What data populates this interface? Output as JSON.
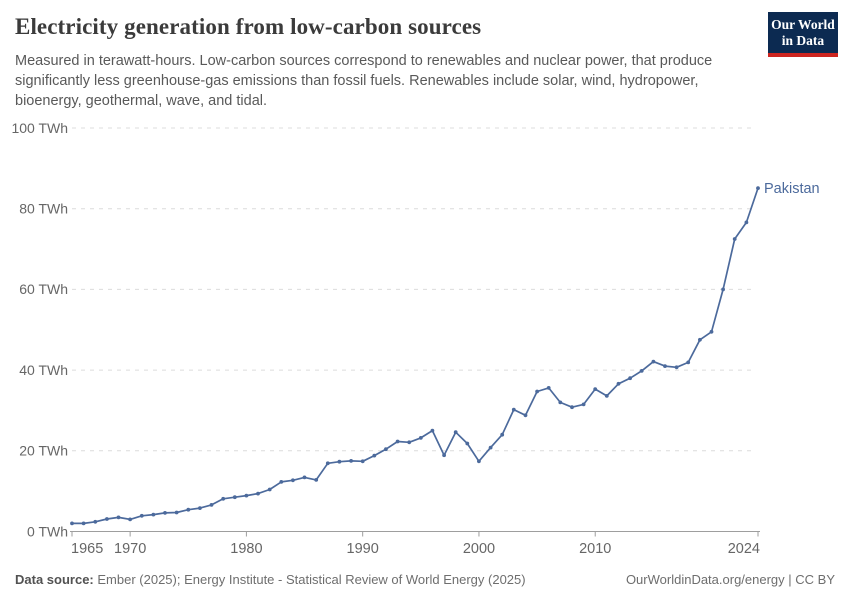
{
  "header": {
    "title": "Electricity generation from low-carbon sources",
    "subtitle": "Measured in terawatt-hours. Low-carbon sources correspond to renewables and nuclear power, that produce significantly less greenhouse-gas emissions than fossil fuels. Renewables include solar, wind, hydropower, bioenergy, geothermal, wave, and tidal.",
    "logo": {
      "line1": "Our World",
      "line2": "in Data",
      "bg_color": "#0c2a51",
      "accent_color": "#cd2520"
    }
  },
  "chart_data": {
    "type": "line",
    "title": "Electricity generation from low-carbon sources",
    "unit": "TWh",
    "xlabel": "",
    "ylabel": "",
    "grid": true,
    "legend_position": "end-of-line-label",
    "xlim": [
      1965,
      2024
    ],
    "ylim": [
      0,
      100
    ],
    "x_ticks": [
      1965,
      1970,
      1980,
      1990,
      2000,
      2010,
      2024
    ],
    "y_ticks": [
      {
        "value": 0,
        "label": "0 TWh"
      },
      {
        "value": 20,
        "label": "20 TWh"
      },
      {
        "value": 40,
        "label": "40 TWh"
      },
      {
        "value": 60,
        "label": "60 TWh"
      },
      {
        "value": 80,
        "label": "80 TWh"
      },
      {
        "value": 100,
        "label": "100 TWh"
      }
    ],
    "series": [
      {
        "name": "Pakistan",
        "color": "#4c6a9c",
        "x": [
          1965,
          1966,
          1967,
          1968,
          1969,
          1970,
          1971,
          1972,
          1973,
          1974,
          1975,
          1976,
          1977,
          1978,
          1979,
          1980,
          1981,
          1982,
          1983,
          1984,
          1985,
          1986,
          1987,
          1988,
          1989,
          1990,
          1991,
          1992,
          1993,
          1994,
          1995,
          1996,
          1997,
          1998,
          1999,
          2000,
          2001,
          2002,
          2003,
          2004,
          2005,
          2006,
          2007,
          2008,
          2009,
          2010,
          2011,
          2012,
          2013,
          2014,
          2015,
          2016,
          2017,
          2018,
          2019,
          2020,
          2021,
          2022,
          2023,
          2024
        ],
        "values": [
          2.0,
          2.0,
          2.4,
          3.1,
          3.5,
          3.0,
          3.9,
          4.2,
          4.6,
          4.7,
          5.4,
          5.8,
          6.6,
          8.1,
          8.5,
          8.9,
          9.4,
          10.4,
          12.3,
          12.7,
          13.4,
          12.8,
          16.9,
          17.3,
          17.5,
          17.4,
          18.8,
          20.4,
          22.3,
          22.1,
          23.2,
          25.0,
          18.9,
          24.6,
          21.8,
          17.4,
          20.8,
          24.0,
          30.2,
          28.8,
          34.7,
          35.6,
          32.0,
          30.8,
          31.5,
          35.3,
          33.6,
          36.6,
          38.0,
          39.8,
          42.1,
          41.0,
          40.7,
          41.9,
          47.5,
          49.5,
          60.0,
          72.5,
          76.6,
          85.1
        ]
      }
    ]
  },
  "footer": {
    "data_source_label": "Data source:",
    "data_source_text": "Ember (2025); Energy Institute - Statistical Review of World Energy (2025)",
    "attribution": "OurWorldinData.org/energy | CC BY"
  },
  "colors": {
    "line": "#4c6a9c",
    "gridline": "#dcdcdc",
    "axis": "#9e9e9e",
    "tick_label": "#666666"
  }
}
